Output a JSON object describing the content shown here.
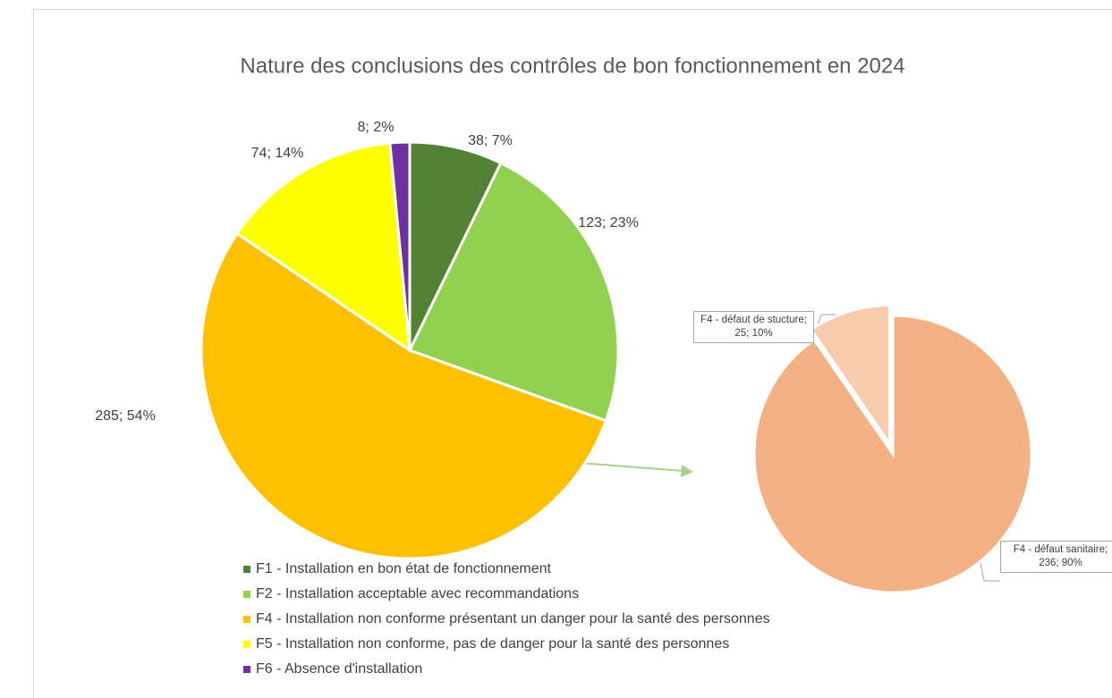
{
  "chart_data": [
    {
      "type": "pie",
      "title": "Nature des conclusions des contrôles de bon fonctionnement en 2024",
      "categories": [
        "F1 - Installation en bon état de fonctionnement",
        "F2 - Installation acceptable avec recommandations",
        "F4 - Installation non conforme présentant un danger pour la santé des personnes",
        "F5 - Installation non conforme, pas de danger pour la santé des personnes",
        "F6 - Absence d'installation"
      ],
      "values": [
        38,
        123,
        285,
        74,
        8
      ],
      "value_labels": [
        "38; 7%",
        "123; 23%",
        "285; 54%",
        "74; 14%",
        "8; 2%"
      ],
      "colors": [
        "#548235",
        "#92d050",
        "#ffc000",
        "#ffff00",
        "#7030a0"
      ]
    },
    {
      "type": "pie",
      "values": [
        236,
        25
      ],
      "value_labels": [
        "F4 - défaut sanitaire; 236; 90%",
        "F4 - défaut de stucture; 25; 10%"
      ],
      "colors": [
        "#f4b183",
        "#f8cbad"
      ]
    }
  ]
}
